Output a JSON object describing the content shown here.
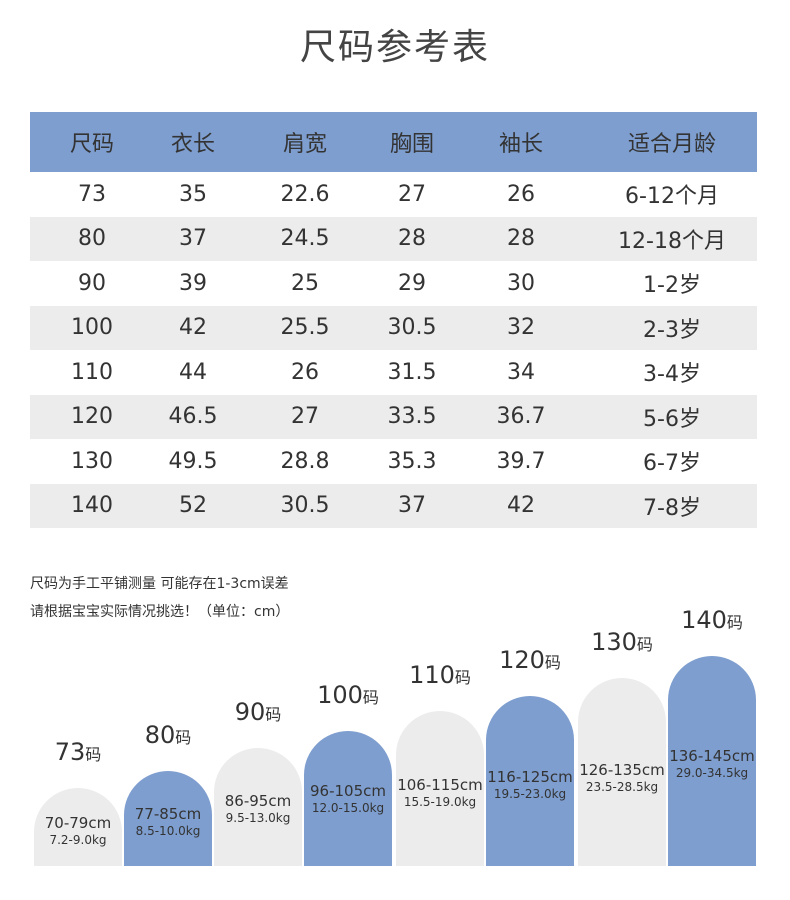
{
  "header": {
    "title": "尺码参考表"
  },
  "table": {
    "columns": [
      "尺码",
      "衣长",
      "肩宽",
      "胸围",
      "袖长",
      "适合月龄"
    ],
    "rows": [
      [
        "73",
        "35",
        "22.6",
        "27",
        "26",
        "6-12个月"
      ],
      [
        "80",
        "37",
        "24.5",
        "28",
        "28",
        "12-18个月"
      ],
      [
        "90",
        "39",
        "25",
        "29",
        "30",
        "1-2岁"
      ],
      [
        "100",
        "42",
        "25.5",
        "30.5",
        "32",
        "2-3岁"
      ],
      [
        "110",
        "44",
        "26",
        "31.5",
        "34",
        "3-4岁"
      ],
      [
        "120",
        "46.5",
        "27",
        "33.5",
        "36.7",
        "5-6岁"
      ],
      [
        "130",
        "49.5",
        "28.8",
        "35.3",
        "39.7",
        "6-7岁"
      ],
      [
        "140",
        "52",
        "30.5",
        "37",
        "42",
        "7-8岁"
      ]
    ]
  },
  "notes": [
    "尺码为手工平铺测量 可能存在1-3cm误差",
    "请根据宝宝实际情况挑选！（单位：cm）"
  ],
  "sizes": [
    {
      "size": "73",
      "unit": "码",
      "height": "70-79cm",
      "weight": "7.2-9.0kg"
    },
    {
      "size": "80",
      "unit": "码",
      "height": "77-85cm",
      "weight": "8.5-10.0kg"
    },
    {
      "size": "90",
      "unit": "码",
      "height": "86-95cm",
      "weight": "9.5-13.0kg"
    },
    {
      "size": "100",
      "unit": "码",
      "height": "96-105cm",
      "weight": "12.0-15.0kg"
    },
    {
      "size": "110",
      "unit": "码",
      "height": "106-115cm",
      "weight": "15.5-19.0kg"
    },
    {
      "size": "120",
      "unit": "码",
      "height": "116-125cm",
      "weight": "19.5-23.0kg"
    },
    {
      "size": "130",
      "unit": "码",
      "height": "126-135cm",
      "weight": "23.5-28.5kg"
    },
    {
      "size": "140",
      "unit": "码",
      "height": "136-145cm",
      "weight": "29.0-34.5kg"
    }
  ]
}
